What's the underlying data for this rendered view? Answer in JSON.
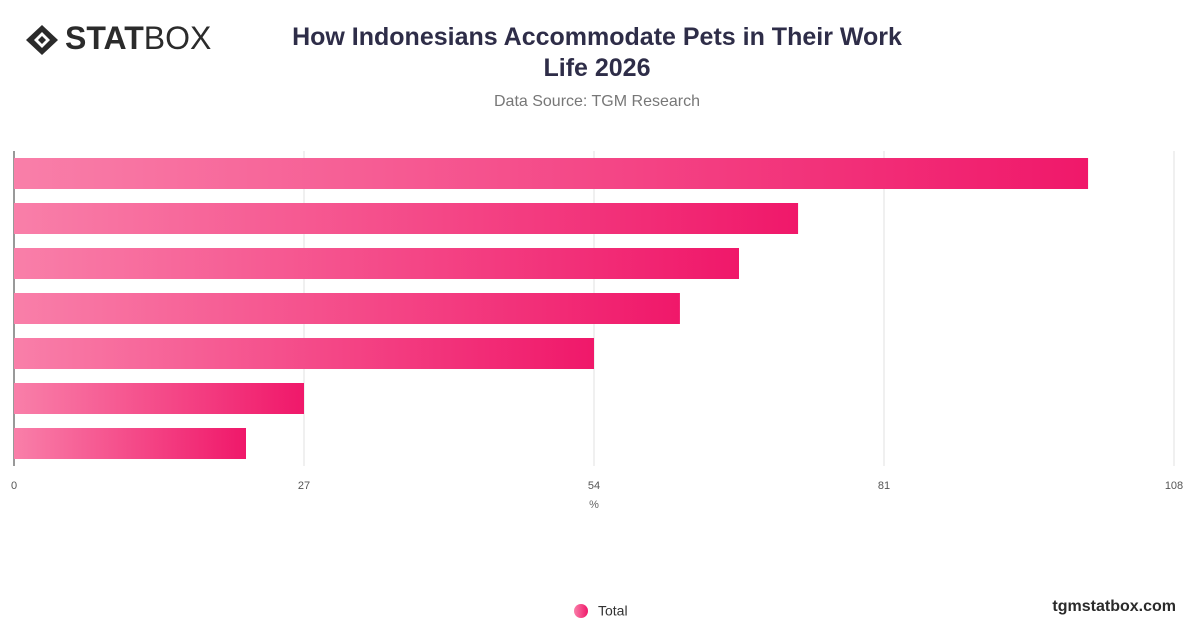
{
  "logo": {
    "bold": "STAT",
    "light": "BOX"
  },
  "footer": "tgmstatbox.com",
  "chart_data": {
    "type": "bar",
    "orientation": "horizontal",
    "title": "How Indonesians Accommodate Pets in Their Work Life 2026",
    "subtitle": "Data Source: TGM Research",
    "x_label": "%",
    "categories": [
      null,
      null,
      null,
      null,
      null,
      null,
      null
    ],
    "series": [
      {
        "name": "Total",
        "color": "#f0186a",
        "gradient_start": "#f97fa9",
        "values": [
          100,
          73,
          67.5,
          62,
          54,
          27,
          21.6
        ]
      }
    ],
    "xlim": [
      0,
      108
    ],
    "xticks": [
      0,
      27,
      54,
      81,
      108
    ],
    "grid": true,
    "legend": "bottom"
  }
}
